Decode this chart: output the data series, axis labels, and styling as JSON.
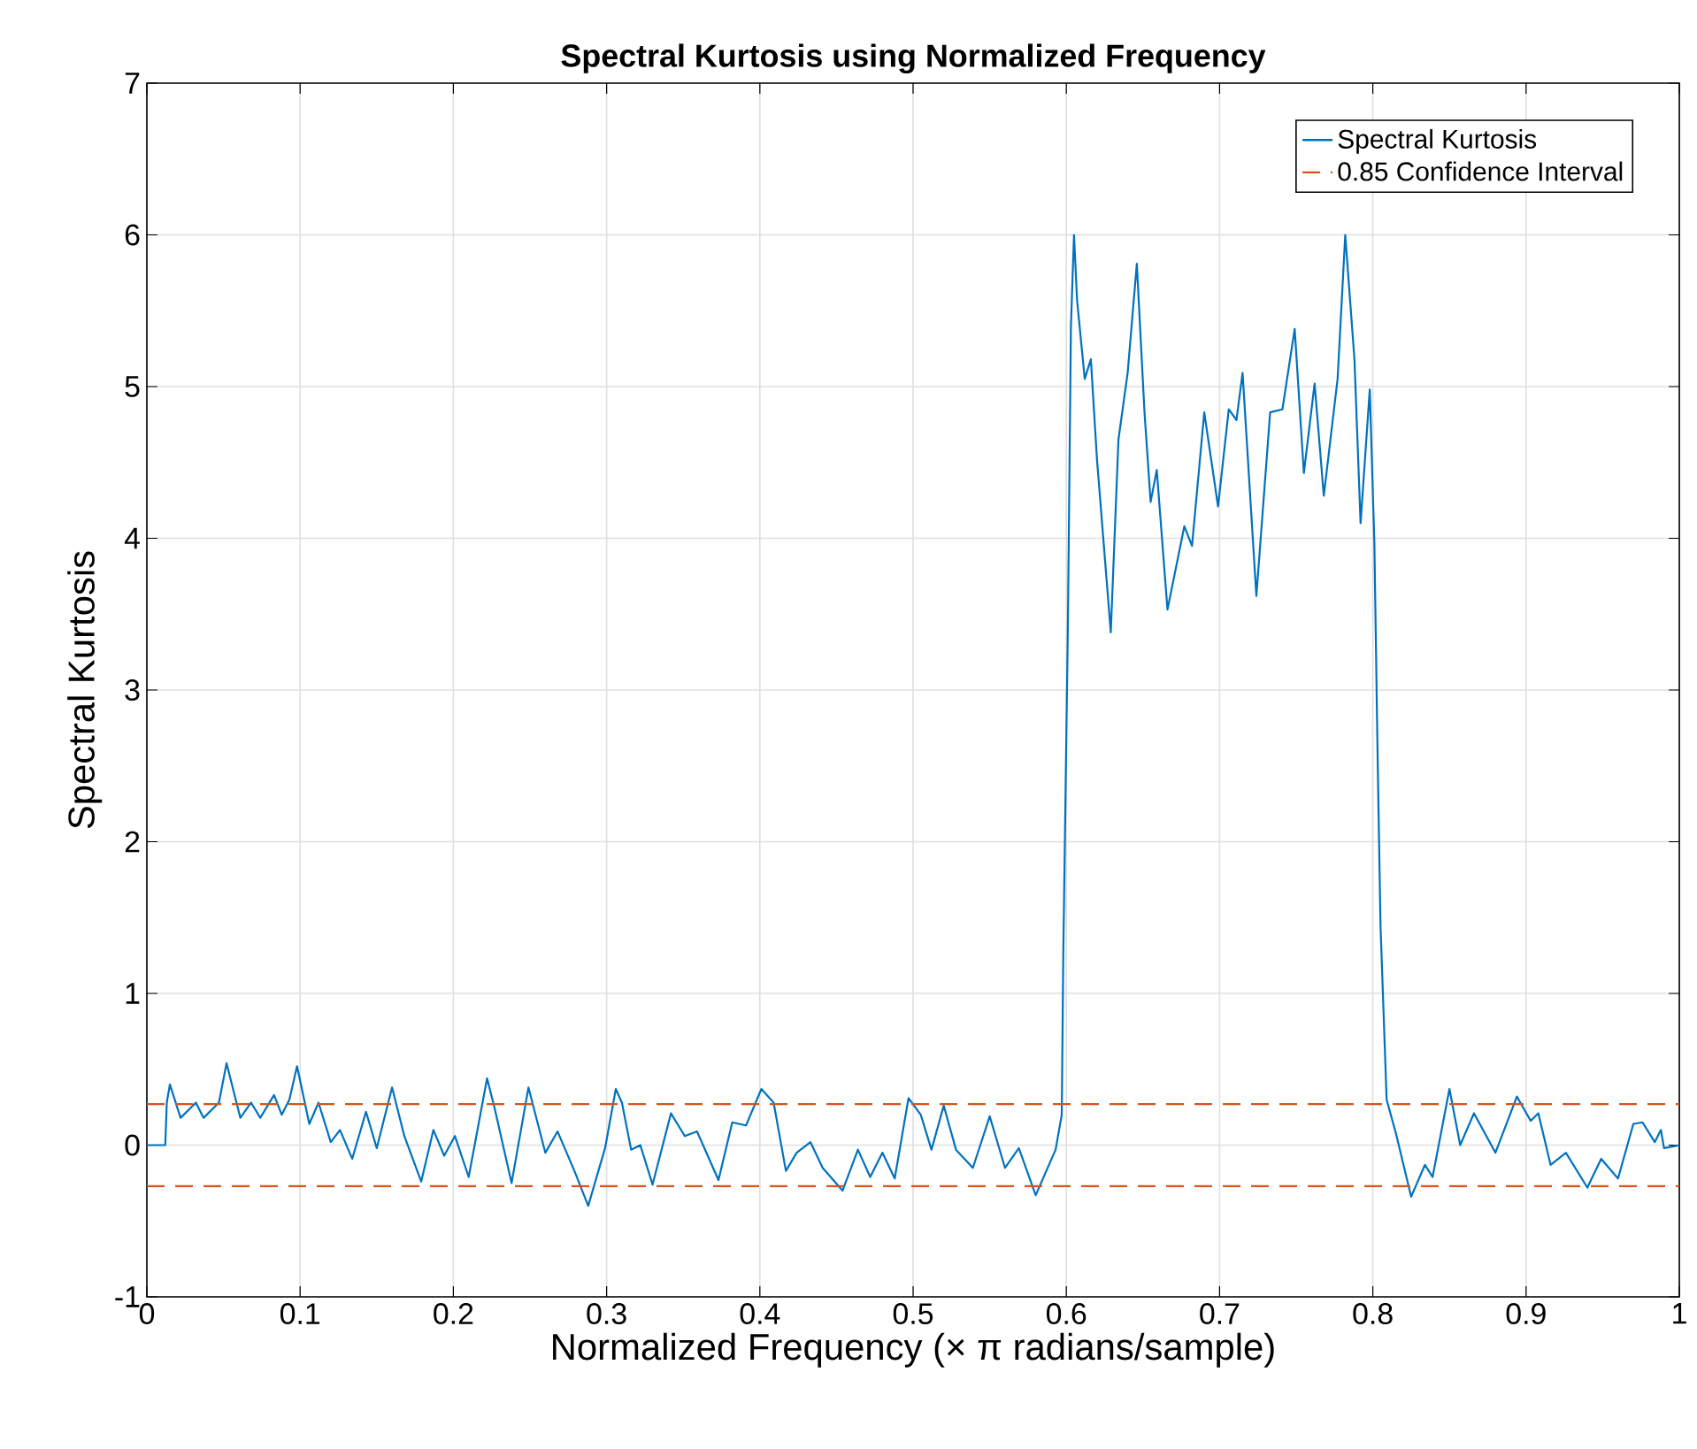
{
  "chart_data": {
    "type": "line",
    "title": "Spectral Kurtosis using Normalized Frequency",
    "xlabel": "Normalized Frequency (× π radians/sample)",
    "ylabel": "Spectral Kurtosis",
    "xlim": [
      0,
      1
    ],
    "ylim": [
      -1,
      7
    ],
    "xticks": [
      0,
      0.1,
      0.2,
      0.3,
      0.4,
      0.5,
      0.6,
      0.7,
      0.8,
      0.9,
      1
    ],
    "yticks": [
      -1,
      0,
      1,
      2,
      3,
      4,
      5,
      6,
      7
    ],
    "grid": true,
    "legend": "top right",
    "line_style": "solid",
    "marker": "none",
    "series": [
      {
        "name": "Spectral Kurtosis",
        "color": "#0072bd",
        "x": [
          0,
          0.012,
          0.013,
          0.015,
          0.022,
          0.032,
          0.037,
          0.047,
          0.052,
          0.057,
          0.061,
          0.068,
          0.074,
          0.083,
          0.088,
          0.093,
          0.098,
          0.106,
          0.112,
          0.12,
          0.126,
          0.134,
          0.143,
          0.15,
          0.16,
          0.168,
          0.179,
          0.187,
          0.194,
          0.201,
          0.21,
          0.222,
          0.227,
          0.238,
          0.249,
          0.26,
          0.268,
          0.279,
          0.288,
          0.299,
          0.306,
          0.31,
          0.316,
          0.322,
          0.33,
          0.342,
          0.351,
          0.359,
          0.373,
          0.382,
          0.391,
          0.401,
          0.409,
          0.417,
          0.424,
          0.433,
          0.441,
          0.454,
          0.464,
          0.472,
          0.48,
          0.488,
          0.497,
          0.505,
          0.512,
          0.52,
          0.528,
          0.539,
          0.55,
          0.56,
          0.569,
          0.58,
          0.593,
          0.597,
          0.598,
          0.601,
          0.603,
          0.605,
          0.607,
          0.612,
          0.616,
          0.62,
          0.629,
          0.634,
          0.64,
          0.646,
          0.651,
          0.655,
          0.659,
          0.666,
          0.677,
          0.682,
          0.69,
          0.699,
          0.706,
          0.711,
          0.715,
          0.724,
          0.733,
          0.741,
          0.749,
          0.755,
          0.762,
          0.768,
          0.777,
          0.782,
          0.788,
          0.792,
          0.798,
          0.801,
          0.803,
          0.805,
          0.809,
          0.815,
          0.825,
          0.834,
          0.839,
          0.85,
          0.857,
          0.866,
          0.88,
          0.894,
          0.903,
          0.908,
          0.916,
          0.926,
          0.94,
          0.949,
          0.96,
          0.97,
          0.976,
          0.984,
          0.988,
          0.99,
          1
        ],
        "values": [
          0,
          0,
          0.28,
          0.4,
          0.18,
          0.28,
          0.18,
          0.28,
          0.54,
          0.34,
          0.18,
          0.28,
          0.18,
          0.33,
          0.2,
          0.3,
          0.52,
          0.14,
          0.28,
          0.02,
          0.1,
          -0.09,
          0.22,
          -0.02,
          0.38,
          0.06,
          -0.24,
          0.1,
          -0.07,
          0.06,
          -0.21,
          0.44,
          0.24,
          -0.25,
          0.38,
          -0.05,
          0.09,
          -0.17,
          -0.4,
          -0.02,
          0.37,
          0.28,
          -0.03,
          0,
          -0.26,
          0.21,
          0.06,
          0.09,
          -0.23,
          0.15,
          0.13,
          0.37,
          0.28,
          -0.17,
          -0.05,
          0.02,
          -0.15,
          -0.3,
          -0.03,
          -0.21,
          -0.05,
          -0.22,
          0.31,
          0.2,
          -0.03,
          0.26,
          -0.03,
          -0.15,
          0.19,
          -0.15,
          -0.02,
          -0.33,
          -0.03,
          0.2,
          1.25,
          3.42,
          5.4,
          6.0,
          5.57,
          5.05,
          5.18,
          4.52,
          3.38,
          4.65,
          5.09,
          5.81,
          4.83,
          4.24,
          4.45,
          3.53,
          4.08,
          3.95,
          4.83,
          4.21,
          4.85,
          4.78,
          5.09,
          3.62,
          4.83,
          4.85,
          5.38,
          4.43,
          5.02,
          4.28,
          5.05,
          6.0,
          5.18,
          4.1,
          4.98,
          3.97,
          2.64,
          1.45,
          0.3,
          0.08,
          -0.34,
          -0.13,
          -0.21,
          0.37,
          0,
          0.21,
          -0.05,
          0.32,
          0.16,
          0.21,
          -0.13,
          -0.05,
          -0.28,
          -0.09,
          -0.22,
          0.14,
          0.15,
          0.02,
          0.1,
          -0.02,
          0
        ]
      }
    ],
    "ref_lines": [
      {
        "axis": "y",
        "value": 0.27,
        "label": "0.85 Confidence Interval",
        "color": "#d95319",
        "line_style": "dashed"
      },
      {
        "axis": "y",
        "value": -0.27,
        "color": "#d95319",
        "line_style": "dashed"
      }
    ]
  }
}
